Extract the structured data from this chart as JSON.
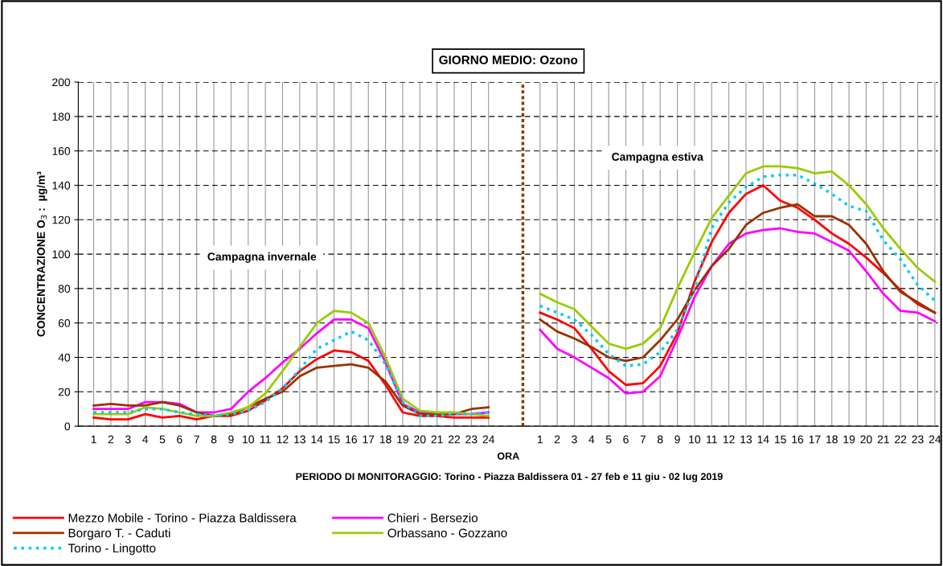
{
  "chart_data": {
    "type": "line",
    "title": "GIORNO MEDIO: Ozono",
    "xlabel": "ORA",
    "ylabel": "CONCENTRAZIONE O$_{3}$ :  µg/m³",
    "annotations": [
      "Campagna invernale",
      "Campagna estiva",
      "PERIODO DI MONITORAGGIO: Torino - Piazza Baldissera 01 - 27 feb e 11 giu - 02 lug 2019"
    ],
    "categories": [
      "1",
      "2",
      "3",
      "4",
      "5",
      "6",
      "7",
      "8",
      "9",
      "10",
      "11",
      "12",
      "13",
      "14",
      "15",
      "16",
      "17",
      "18",
      "19",
      "20",
      "21",
      "22",
      "23",
      "24",
      null,
      null,
      "1",
      "2",
      "3",
      "4",
      "5",
      "6",
      "7",
      "8",
      "9",
      "10",
      "11",
      "12",
      "13",
      "14",
      "15",
      "16",
      "17",
      "18",
      "19",
      "20",
      "21",
      "22",
      "23",
      "24"
    ],
    "ylim": [
      0,
      200
    ],
    "yticks": [
      0,
      20,
      40,
      60,
      80,
      100,
      120,
      140,
      160,
      180,
      200
    ],
    "grid": true,
    "legend": "bottom",
    "series": [
      {
        "name": "Mezzo Mobile - Torino - Piazza Baldissera",
        "color": "#ff0000",
        "line_style": "solid",
        "values": [
          5,
          4,
          4,
          7,
          5,
          6,
          4,
          6,
          6,
          9,
          15,
          22,
          32,
          39,
          44,
          43,
          38,
          24,
          8,
          6,
          6,
          5,
          5,
          5,
          null,
          null,
          66,
          62,
          57,
          45,
          32,
          24,
          25,
          35,
          54,
          84,
          107,
          124,
          135,
          140,
          131,
          127,
          120,
          112,
          106,
          98,
          89,
          79,
          71,
          66
        ]
      },
      {
        "name": "Chieri - Bersezio",
        "color": "#ff00ff",
        "line_style": "solid",
        "values": [
          10,
          10,
          10,
          14,
          14,
          13,
          8,
          8,
          10,
          20,
          28,
          37,
          45,
          54,
          62,
          62,
          57,
          37,
          13,
          8,
          7,
          7,
          7,
          8,
          null,
          null,
          56,
          45,
          40,
          34,
          28,
          19,
          20,
          29,
          51,
          75,
          93,
          106,
          112,
          114,
          115,
          113,
          112,
          107,
          102,
          90,
          77,
          67,
          66,
          61
        ]
      },
      {
        "name": "Borgaro T. - Caduti",
        "color": "#993300",
        "line_style": "solid",
        "values": [
          12,
          13,
          12,
          12,
          14,
          12,
          8,
          6,
          7,
          11,
          16,
          20,
          29,
          34,
          35,
          36,
          34,
          26,
          12,
          7,
          7,
          7,
          10,
          11,
          null,
          null,
          62,
          55,
          51,
          46,
          40,
          38,
          40,
          50,
          62,
          79,
          93,
          103,
          117,
          124,
          127,
          129,
          122,
          122,
          117,
          106,
          90,
          78,
          72,
          66
        ]
      },
      {
        "name": "Orbassano - Gozzano",
        "color": "#99cc00",
        "line_style": "solid",
        "values": [
          7,
          7,
          7,
          11,
          10,
          8,
          6,
          6,
          8,
          11,
          19,
          32,
          46,
          60,
          67,
          66,
          60,
          40,
          16,
          9,
          8,
          8,
          7,
          6,
          null,
          null,
          77,
          72,
          68,
          58,
          48,
          45,
          48,
          57,
          80,
          101,
          121,
          134,
          147,
          151,
          151,
          150,
          147,
          148,
          140,
          129,
          115,
          103,
          92,
          84
        ]
      },
      {
        "name": "Torino - Lingotto",
        "color": "#00ccff",
        "line_style": "dotted",
        "values": [
          8,
          8,
          8,
          10,
          10,
          8,
          7,
          6,
          7,
          9,
          14,
          22,
          33,
          45,
          50,
          55,
          50,
          36,
          14,
          6,
          6,
          7,
          7,
          8,
          null,
          null,
          70,
          66,
          62,
          53,
          42,
          35,
          36,
          43,
          56,
          80,
          115,
          130,
          139,
          145,
          146,
          146,
          141,
          135,
          128,
          125,
          108,
          97,
          82,
          73
        ]
      }
    ]
  }
}
